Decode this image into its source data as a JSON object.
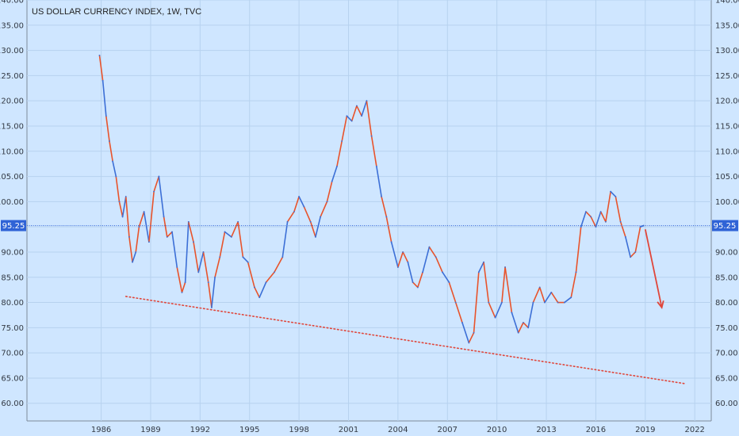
{
  "chart_data": {
    "type": "line",
    "title": "US DOLLAR CURRENCY INDEX, 1W, TVC",
    "xlabel": "",
    "ylabel": "",
    "xlim": [
      1981.5,
      2023.0
    ],
    "ylim": [
      56.5,
      140
    ],
    "y_ticks": [
      60,
      65,
      70,
      75,
      80,
      85,
      90,
      95,
      100,
      105,
      110,
      115,
      120,
      125,
      130,
      135,
      140
    ],
    "x_ticks": [
      1986,
      1989,
      1992,
      1995,
      1998,
      2001,
      2004,
      2007,
      2010,
      2013,
      2016,
      2019,
      2022
    ],
    "grid": true,
    "series": [
      {
        "color": "#e8532b",
        "alt_color": "#3c6fd6",
        "x": [
          1985.9,
          1986.1,
          1986.3,
          1986.5,
          1986.7,
          1986.9,
          1987.1,
          1987.3,
          1987.5,
          1987.7,
          1987.9,
          1988.1,
          1988.3,
          1988.6,
          1988.9,
          1989.2,
          1989.5,
          1989.8,
          1990.0,
          1990.3,
          1990.6,
          1990.9,
          1991.1,
          1991.3,
          1991.6,
          1991.9,
          1992.2,
          1992.5,
          1992.7,
          1992.9,
          1993.2,
          1993.5,
          1993.9,
          1994.3,
          1994.6,
          1994.9,
          1995.3,
          1995.6,
          1996.0,
          1996.5,
          1997.0,
          1997.3,
          1997.7,
          1998.0,
          1998.3,
          1998.7,
          1999.0,
          1999.3,
          1999.7,
          2000.0,
          2000.3,
          2000.6,
          2000.9,
          2001.2,
          2001.5,
          2001.8,
          2002.1,
          2002.4,
          2002.7,
          2003.0,
          2003.3,
          2003.6,
          2004.0,
          2004.3,
          2004.6,
          2004.9,
          2005.2,
          2005.5,
          2005.9,
          2006.3,
          2006.7,
          2007.1,
          2007.5,
          2007.9,
          2008.3,
          2008.6,
          2008.9,
          2009.2,
          2009.5,
          2009.9,
          2010.3,
          2010.5,
          2010.9,
          2011.3,
          2011.6,
          2011.9,
          2012.2,
          2012.6,
          2012.9,
          2013.3,
          2013.7,
          2014.1,
          2014.5,
          2014.8,
          2015.1,
          2015.4,
          2015.7,
          2016.0,
          2016.3,
          2016.6,
          2016.9,
          2017.2,
          2017.5,
          2017.8,
          2018.1,
          2018.4,
          2018.7,
          2018.9
        ],
        "y": [
          129,
          124,
          117,
          112,
          108,
          105,
          100,
          97,
          101,
          93,
          88,
          90,
          95,
          98,
          92,
          102,
          105,
          97,
          93,
          94,
          87,
          82,
          84,
          96,
          92,
          86,
          90,
          84,
          79,
          85,
          89,
          94,
          93,
          96,
          89,
          88,
          83,
          81,
          84,
          86,
          89,
          96,
          98,
          101,
          99,
          96,
          93,
          97,
          100,
          104,
          107,
          112,
          117,
          116,
          119,
          117,
          120,
          113,
          107,
          101,
          97,
          92,
          87,
          90,
          88,
          84,
          83,
          86,
          91,
          89,
          86,
          84,
          80,
          76,
          72,
          74,
          86,
          88,
          80,
          77,
          80,
          87,
          78,
          74,
          76,
          75,
          80,
          83,
          80,
          82,
          80,
          80,
          81,
          86,
          95,
          98,
          97,
          95,
          98,
          96,
          102,
          101,
          96,
          93,
          89,
          90,
          95,
          95.25
        ]
      }
    ],
    "current_value": 95.25,
    "current_label": "95.25",
    "trendline": {
      "x": [
        1987.5,
        2021.4
      ],
      "y": [
        81.2,
        63.9
      ],
      "color": "#e0463a",
      "style": "dotted"
    },
    "arrow": {
      "x": [
        2019.0,
        2020.0
      ],
      "y": [
        94.5,
        79.0
      ],
      "color": "#e0463a"
    }
  }
}
